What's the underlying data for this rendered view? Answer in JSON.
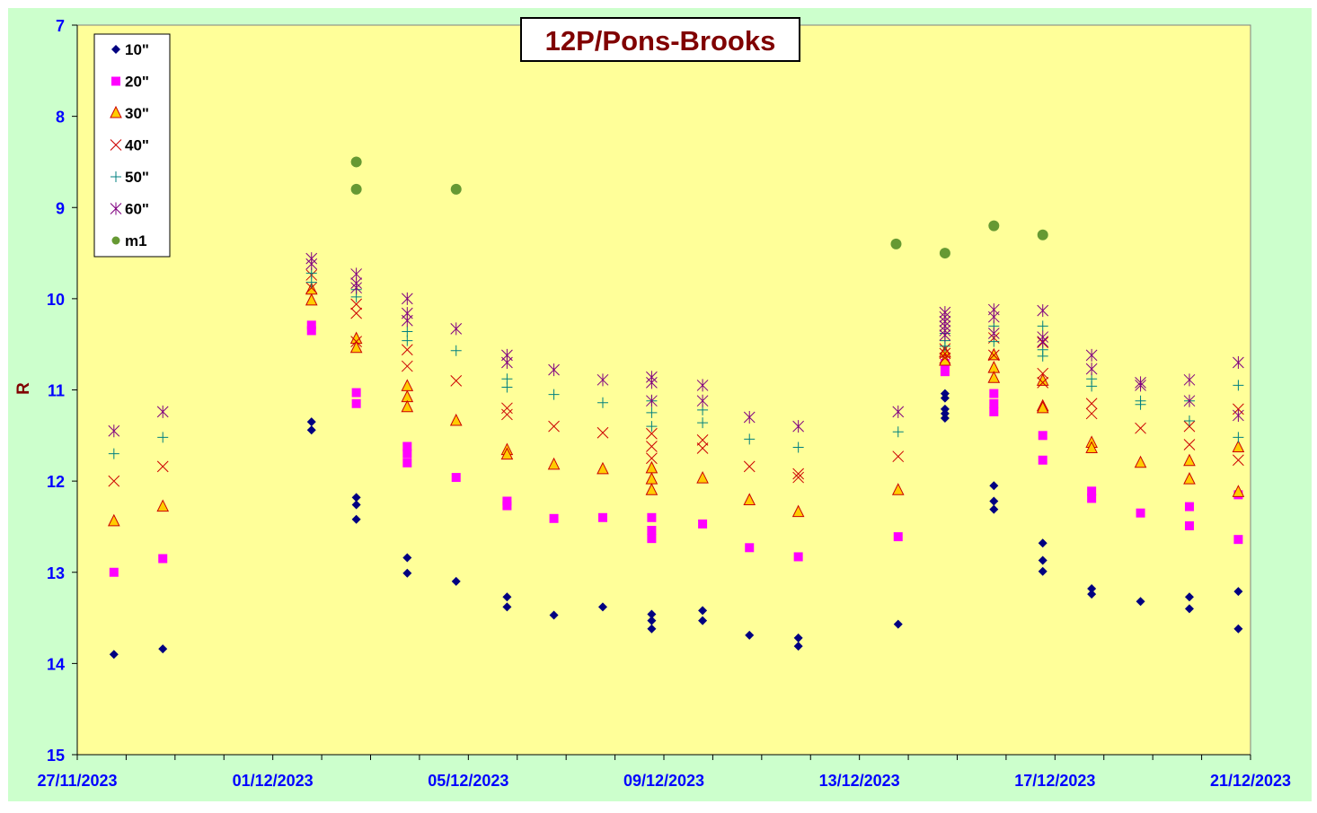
{
  "chart_data": {
    "type": "scatter",
    "title": "12P/Pons-Brooks",
    "xlabel": "",
    "ylabel": "R",
    "x_axis": {
      "min": "2023-11-27",
      "max": "2023-12-21",
      "tick_labels": [
        "27/11/2023",
        "01/12/2023",
        "05/12/2023",
        "09/12/2023",
        "13/12/2023",
        "17/12/2023",
        "21/12/2023"
      ]
    },
    "y_axis": {
      "min": 7,
      "max": 15,
      "reversed": true,
      "tick_labels": [
        "7",
        "8",
        "9",
        "10",
        "11",
        "12",
        "13",
        "14",
        "15"
      ]
    },
    "legend_position": "top-left",
    "grid": false,
    "colors": {
      "outer_background": "#ccffcc",
      "plot_background": "#ffff99",
      "axis_text": "#0000ff",
      "ylabel": "#800000",
      "title": "#800000"
    },
    "series": [
      {
        "name": "10\"",
        "marker": "diamond",
        "color": "#000080",
        "points": [
          [
            "2023-11-27T18:00",
            13.9
          ],
          [
            "2023-11-28T18:00",
            13.84
          ],
          [
            "2023-12-01T19:00",
            11.35
          ],
          [
            "2023-12-01T19:00",
            11.44
          ],
          [
            "2023-12-02T17:00",
            12.18
          ],
          [
            "2023-12-02T17:00",
            12.26
          ],
          [
            "2023-12-02T17:00",
            12.42
          ],
          [
            "2023-12-03T18:00",
            12.84
          ],
          [
            "2023-12-03T18:00",
            13.01
          ],
          [
            "2023-12-04T18:00",
            13.1
          ],
          [
            "2023-12-05T19:00",
            13.27
          ],
          [
            "2023-12-05T19:00",
            13.38
          ],
          [
            "2023-12-06T18:00",
            13.47
          ],
          [
            "2023-12-07T18:00",
            13.38
          ],
          [
            "2023-12-08T18:00",
            13.46
          ],
          [
            "2023-12-08T18:00",
            13.53
          ],
          [
            "2023-12-08T18:00",
            13.62
          ],
          [
            "2023-12-09T19:00",
            13.42
          ],
          [
            "2023-12-09T19:00",
            13.53
          ],
          [
            "2023-12-10T18:00",
            13.69
          ],
          [
            "2023-12-11T18:00",
            13.72
          ],
          [
            "2023-12-11T18:00",
            13.81
          ],
          [
            "2023-12-13T19:00",
            13.57
          ],
          [
            "2023-12-14T18:00",
            11.04
          ],
          [
            "2023-12-14T18:00",
            11.09
          ],
          [
            "2023-12-14T18:00",
            11.21
          ],
          [
            "2023-12-14T18:00",
            11.26
          ],
          [
            "2023-12-14T18:00",
            11.31
          ],
          [
            "2023-12-15T18:00",
            12.05
          ],
          [
            "2023-12-15T18:00",
            12.22
          ],
          [
            "2023-12-15T18:00",
            12.31
          ],
          [
            "2023-12-16T18:00",
            12.68
          ],
          [
            "2023-12-16T18:00",
            12.87
          ],
          [
            "2023-12-16T18:00",
            12.99
          ],
          [
            "2023-12-17T18:00",
            13.18
          ],
          [
            "2023-12-17T18:00",
            13.24
          ],
          [
            "2023-12-18T18:00",
            13.32
          ],
          [
            "2023-12-19T18:00",
            13.27
          ],
          [
            "2023-12-19T18:00",
            13.4
          ],
          [
            "2023-12-20T18:00",
            13.21
          ],
          [
            "2023-12-20T18:00",
            13.62
          ]
        ]
      },
      {
        "name": "20\"",
        "marker": "square",
        "color": "#ff00ff",
        "points": [
          [
            "2023-11-27T18:00",
            13.0
          ],
          [
            "2023-11-28T18:00",
            12.85
          ],
          [
            "2023-12-01T19:00",
            10.29
          ],
          [
            "2023-12-01T19:00",
            10.35
          ],
          [
            "2023-12-02T17:00",
            11.03
          ],
          [
            "2023-12-02T17:00",
            11.15
          ],
          [
            "2023-12-03T18:00",
            11.62
          ],
          [
            "2023-12-03T18:00",
            11.7
          ],
          [
            "2023-12-03T18:00",
            11.8
          ],
          [
            "2023-12-04T18:00",
            11.96
          ],
          [
            "2023-12-05T19:00",
            12.22
          ],
          [
            "2023-12-05T19:00",
            12.27
          ],
          [
            "2023-12-06T18:00",
            12.41
          ],
          [
            "2023-12-07T18:00",
            12.4
          ],
          [
            "2023-12-08T18:00",
            12.4
          ],
          [
            "2023-12-08T18:00",
            12.54
          ],
          [
            "2023-12-08T18:00",
            12.63
          ],
          [
            "2023-12-09T19:00",
            12.47
          ],
          [
            "2023-12-10T18:00",
            12.73
          ],
          [
            "2023-12-11T18:00",
            12.83
          ],
          [
            "2023-12-13T19:00",
            12.61
          ],
          [
            "2023-12-14T18:00",
            10.71
          ],
          [
            "2023-12-14T18:00",
            10.8
          ],
          [
            "2023-12-15T18:00",
            11.04
          ],
          [
            "2023-12-15T18:00",
            11.15
          ],
          [
            "2023-12-15T18:00",
            11.24
          ],
          [
            "2023-12-16T18:00",
            11.5
          ],
          [
            "2023-12-16T18:00",
            11.77
          ],
          [
            "2023-12-17T18:00",
            12.11
          ],
          [
            "2023-12-17T18:00",
            12.19
          ],
          [
            "2023-12-18T18:00",
            12.35
          ],
          [
            "2023-12-19T18:00",
            12.28
          ],
          [
            "2023-12-19T18:00",
            12.49
          ],
          [
            "2023-12-20T18:00",
            12.15
          ],
          [
            "2023-12-20T18:00",
            12.64
          ]
        ]
      },
      {
        "name": "30\"",
        "marker": "triangle",
        "color": "#ffcc00",
        "points": [
          [
            "2023-11-27T18:00",
            12.44
          ],
          [
            "2023-11-28T18:00",
            12.28
          ],
          [
            "2023-12-01T19:00",
            9.9
          ],
          [
            "2023-12-01T19:00",
            10.02
          ],
          [
            "2023-12-02T17:00",
            10.44
          ],
          [
            "2023-12-02T17:00",
            10.54
          ],
          [
            "2023-12-03T18:00",
            10.96
          ],
          [
            "2023-12-03T18:00",
            11.08
          ],
          [
            "2023-12-03T18:00",
            11.19
          ],
          [
            "2023-12-04T18:00",
            11.34
          ],
          [
            "2023-12-05T19:00",
            11.66
          ],
          [
            "2023-12-05T19:00",
            11.71
          ],
          [
            "2023-12-06T18:00",
            11.82
          ],
          [
            "2023-12-07T18:00",
            11.87
          ],
          [
            "2023-12-08T18:00",
            11.86
          ],
          [
            "2023-12-08T18:00",
            11.98
          ],
          [
            "2023-12-08T18:00",
            12.1
          ],
          [
            "2023-12-09T19:00",
            11.97
          ],
          [
            "2023-12-10T18:00",
            12.21
          ],
          [
            "2023-12-11T18:00",
            12.34
          ],
          [
            "2023-12-13T19:00",
            12.1
          ],
          [
            "2023-12-14T18:00",
            10.59
          ],
          [
            "2023-12-14T18:00",
            10.68
          ],
          [
            "2023-12-15T18:00",
            10.62
          ],
          [
            "2023-12-15T18:00",
            10.76
          ],
          [
            "2023-12-15T18:00",
            10.87
          ],
          [
            "2023-12-16T18:00",
            10.9
          ],
          [
            "2023-12-16T18:00",
            11.18
          ],
          [
            "2023-12-16T18:00",
            11.2
          ],
          [
            "2023-12-17T18:00",
            11.58
          ],
          [
            "2023-12-17T18:00",
            11.64
          ],
          [
            "2023-12-18T18:00",
            11.8
          ],
          [
            "2023-12-19T18:00",
            11.78
          ],
          [
            "2023-12-19T18:00",
            11.98
          ],
          [
            "2023-12-20T18:00",
            11.63
          ],
          [
            "2023-12-20T18:00",
            12.12
          ]
        ]
      },
      {
        "name": "40\"",
        "marker": "x",
        "color": "#cc0000",
        "points": [
          [
            "2023-11-27T18:00",
            12.0
          ],
          [
            "2023-11-28T18:00",
            11.84
          ],
          [
            "2023-12-01T19:00",
            9.74
          ],
          [
            "2023-12-01T19:00",
            9.88
          ],
          [
            "2023-12-02T17:00",
            10.06
          ],
          [
            "2023-12-02T17:00",
            10.16
          ],
          [
            "2023-12-02T17:00",
            10.47
          ],
          [
            "2023-12-03T18:00",
            10.56
          ],
          [
            "2023-12-03T18:00",
            10.74
          ],
          [
            "2023-12-04T18:00",
            10.9
          ],
          [
            "2023-12-05T19:00",
            11.2
          ],
          [
            "2023-12-05T19:00",
            11.27
          ],
          [
            "2023-12-06T18:00",
            11.4
          ],
          [
            "2023-12-07T18:00",
            11.47
          ],
          [
            "2023-12-08T18:00",
            11.48
          ],
          [
            "2023-12-08T18:00",
            11.62
          ],
          [
            "2023-12-08T18:00",
            11.75
          ],
          [
            "2023-12-09T19:00",
            11.55
          ],
          [
            "2023-12-09T19:00",
            11.64
          ],
          [
            "2023-12-10T18:00",
            11.84
          ],
          [
            "2023-12-11T18:00",
            11.92
          ],
          [
            "2023-12-11T18:00",
            11.96
          ],
          [
            "2023-12-13T19:00",
            11.73
          ],
          [
            "2023-12-14T18:00",
            10.55
          ],
          [
            "2023-12-14T18:00",
            10.6
          ],
          [
            "2023-12-14T18:00",
            10.65
          ],
          [
            "2023-12-15T18:00",
            10.43
          ],
          [
            "2023-12-15T18:00",
            10.62
          ],
          [
            "2023-12-16T18:00",
            10.48
          ],
          [
            "2023-12-16T18:00",
            10.82
          ],
          [
            "2023-12-16T18:00",
            10.92
          ],
          [
            "2023-12-17T18:00",
            11.15
          ],
          [
            "2023-12-17T18:00",
            11.26
          ],
          [
            "2023-12-18T18:00",
            11.42
          ],
          [
            "2023-12-19T18:00",
            11.4
          ],
          [
            "2023-12-19T18:00",
            11.6
          ],
          [
            "2023-12-20T18:00",
            11.21
          ],
          [
            "2023-12-20T18:00",
            11.77
          ]
        ]
      },
      {
        "name": "50\"",
        "marker": "plus",
        "color": "#008080",
        "points": [
          [
            "2023-11-27T18:00",
            11.7
          ],
          [
            "2023-11-28T18:00",
            11.52
          ],
          [
            "2023-12-01T19:00",
            9.72
          ],
          [
            "2023-12-01T19:00",
            9.82
          ],
          [
            "2023-12-02T17:00",
            9.9
          ],
          [
            "2023-12-02T17:00",
            9.98
          ],
          [
            "2023-12-03T18:00",
            10.36
          ],
          [
            "2023-12-03T18:00",
            10.46
          ],
          [
            "2023-12-04T18:00",
            10.57
          ],
          [
            "2023-12-05T19:00",
            10.88
          ],
          [
            "2023-12-05T19:00",
            10.97
          ],
          [
            "2023-12-06T18:00",
            11.05
          ],
          [
            "2023-12-07T18:00",
            11.14
          ],
          [
            "2023-12-08T18:00",
            11.12
          ],
          [
            "2023-12-08T18:00",
            11.25
          ],
          [
            "2023-12-08T18:00",
            11.4
          ],
          [
            "2023-12-09T19:00",
            11.22
          ],
          [
            "2023-12-09T19:00",
            11.36
          ],
          [
            "2023-12-10T18:00",
            11.54
          ],
          [
            "2023-12-11T18:00",
            11.63
          ],
          [
            "2023-12-13T19:00",
            11.46
          ],
          [
            "2023-12-14T18:00",
            10.38
          ],
          [
            "2023-12-14T18:00",
            10.46
          ],
          [
            "2023-12-14T18:00",
            10.52
          ],
          [
            "2023-12-15T18:00",
            10.3
          ],
          [
            "2023-12-15T18:00",
            10.47
          ],
          [
            "2023-12-16T18:00",
            10.3
          ],
          [
            "2023-12-16T18:00",
            10.56
          ],
          [
            "2023-12-16T18:00",
            10.63
          ],
          [
            "2023-12-17T18:00",
            10.88
          ],
          [
            "2023-12-17T18:00",
            10.96
          ],
          [
            "2023-12-18T18:00",
            11.12
          ],
          [
            "2023-12-18T18:00",
            11.16
          ],
          [
            "2023-12-19T18:00",
            11.12
          ],
          [
            "2023-12-19T18:00",
            11.34
          ],
          [
            "2023-12-20T18:00",
            10.95
          ],
          [
            "2023-12-20T18:00",
            11.52
          ]
        ]
      },
      {
        "name": "60\"",
        "marker": "star",
        "color": "#800080",
        "points": [
          [
            "2023-11-27T18:00",
            11.45
          ],
          [
            "2023-11-28T18:00",
            11.24
          ],
          [
            "2023-12-01T19:00",
            9.56
          ],
          [
            "2023-12-01T19:00",
            9.62
          ],
          [
            "2023-12-02T17:00",
            9.73
          ],
          [
            "2023-12-02T17:00",
            9.83
          ],
          [
            "2023-12-02T17:00",
            9.88
          ],
          [
            "2023-12-03T18:00",
            10.0
          ],
          [
            "2023-12-03T18:00",
            10.16
          ],
          [
            "2023-12-03T18:00",
            10.24
          ],
          [
            "2023-12-04T18:00",
            10.33
          ],
          [
            "2023-12-05T19:00",
            10.62
          ],
          [
            "2023-12-05T19:00",
            10.7
          ],
          [
            "2023-12-06T18:00",
            10.78
          ],
          [
            "2023-12-07T18:00",
            10.89
          ],
          [
            "2023-12-08T18:00",
            10.86
          ],
          [
            "2023-12-08T18:00",
            10.92
          ],
          [
            "2023-12-08T18:00",
            11.12
          ],
          [
            "2023-12-09T19:00",
            10.95
          ],
          [
            "2023-12-09T19:00",
            11.12
          ],
          [
            "2023-12-10T18:00",
            11.3
          ],
          [
            "2023-12-11T18:00",
            11.4
          ],
          [
            "2023-12-13T19:00",
            11.24
          ],
          [
            "2023-12-14T18:00",
            10.15
          ],
          [
            "2023-12-14T18:00",
            10.2
          ],
          [
            "2023-12-14T18:00",
            10.25
          ],
          [
            "2023-12-14T18:00",
            10.3
          ],
          [
            "2023-12-14T18:00",
            10.35
          ],
          [
            "2023-12-14T18:00",
            10.4
          ],
          [
            "2023-12-15T18:00",
            10.12
          ],
          [
            "2023-12-15T18:00",
            10.2
          ],
          [
            "2023-12-15T18:00",
            10.38
          ],
          [
            "2023-12-16T18:00",
            10.13
          ],
          [
            "2023-12-16T18:00",
            10.42
          ],
          [
            "2023-12-16T18:00",
            10.47
          ],
          [
            "2023-12-17T18:00",
            10.62
          ],
          [
            "2023-12-17T18:00",
            10.77
          ],
          [
            "2023-12-18T18:00",
            10.92
          ],
          [
            "2023-12-18T18:00",
            10.95
          ],
          [
            "2023-12-19T18:00",
            10.89
          ],
          [
            "2023-12-19T18:00",
            11.12
          ],
          [
            "2023-12-20T18:00",
            10.7
          ],
          [
            "2023-12-20T18:00",
            11.28
          ]
        ]
      },
      {
        "name": "m1",
        "marker": "circle",
        "color": "#669933",
        "points": [
          [
            "2023-12-02T17:00",
            8.5
          ],
          [
            "2023-12-02T17:00",
            8.8
          ],
          [
            "2023-12-04T18:00",
            8.8
          ],
          [
            "2023-12-13T18:00",
            9.4
          ],
          [
            "2023-12-14T18:00",
            9.5
          ],
          [
            "2023-12-15T18:00",
            9.2
          ],
          [
            "2023-12-16T18:00",
            9.3
          ]
        ]
      }
    ]
  }
}
